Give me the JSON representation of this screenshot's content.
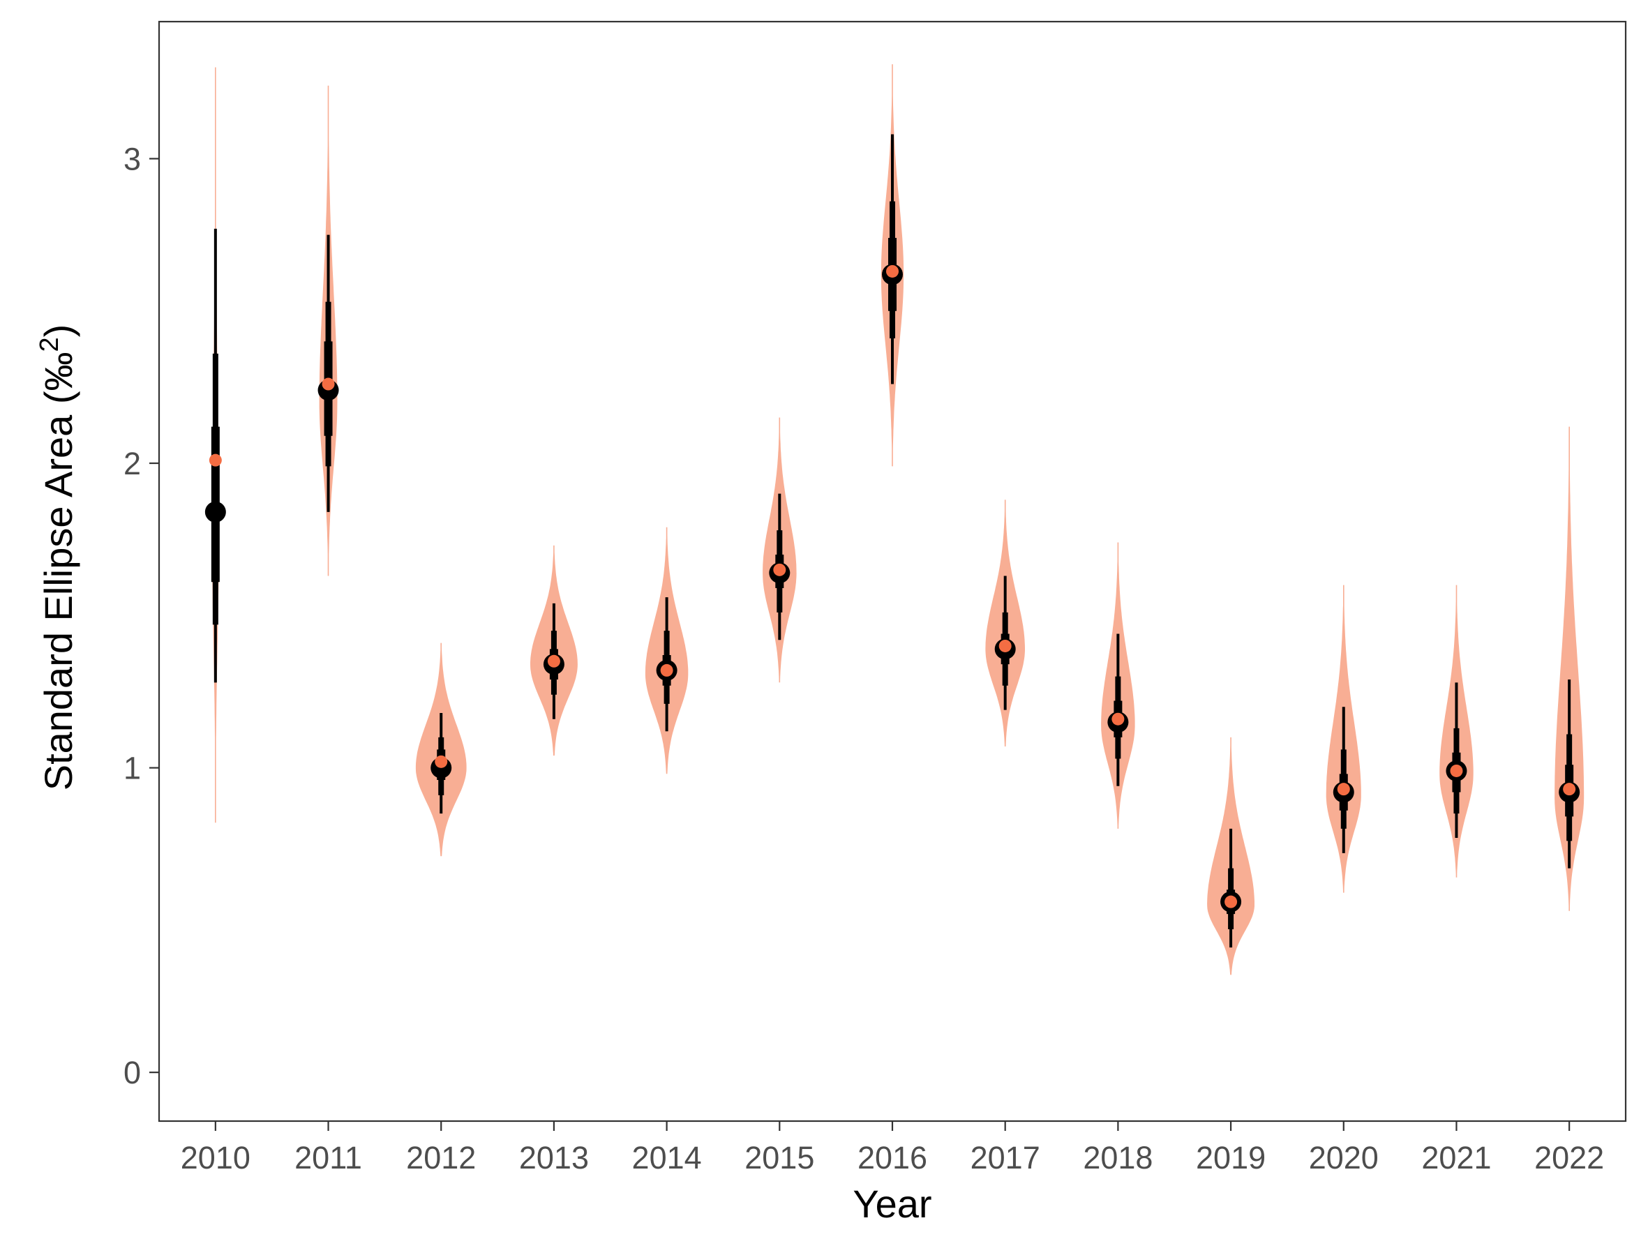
{
  "chart_data": {
    "type": "violin",
    "xlabel": "Year",
    "ylabel_main": "Standard Ellipse Area (",
    "ylabel_unit": "‰",
    "ylabel_sup": "2",
    "ylabel_close": ")",
    "ylim": [
      -0.16,
      3.45
    ],
    "y_ticks": [
      0,
      1,
      2,
      3
    ],
    "y_tick_labels": [
      "0",
      "1",
      "2",
      "3"
    ],
    "categories": [
      "2010",
      "2011",
      "2012",
      "2013",
      "2014",
      "2015",
      "2016",
      "2017",
      "2018",
      "2019",
      "2020",
      "2021",
      "2022"
    ],
    "grid": false,
    "legend": "none",
    "colors": {
      "violin_fill": "#f8ae94",
      "interval": "#000000",
      "mode_point": "#000000",
      "ml_point": "#f46d43"
    },
    "series": [
      {
        "year": "2010",
        "mode": 1.84,
        "ml_estimate": 2.01,
        "ci_50": [
          1.61,
          2.12
        ],
        "ci_75": [
          1.47,
          2.36
        ],
        "ci_95": [
          1.28,
          2.77
        ],
        "min": 0.82,
        "max": 3.3,
        "peak": 1.75,
        "half_width": 0.06
      },
      {
        "year": "2011",
        "mode": 2.24,
        "ml_estimate": 2.26,
        "ci_50": [
          2.09,
          2.4
        ],
        "ci_75": [
          1.99,
          2.53
        ],
        "ci_95": [
          1.84,
          2.75
        ],
        "min": 1.63,
        "max": 3.24,
        "peak": 2.2,
        "half_width": 0.16
      },
      {
        "year": "2012",
        "mode": 1.0,
        "ml_estimate": 1.02,
        "ci_50": [
          0.96,
          1.06
        ],
        "ci_75": [
          0.91,
          1.1
        ],
        "ci_95": [
          0.85,
          1.18
        ],
        "min": 0.71,
        "max": 1.41,
        "peak": 1.0,
        "half_width": 0.45
      },
      {
        "year": "2013",
        "mode": 1.34,
        "ml_estimate": 1.35,
        "ci_50": [
          1.29,
          1.39
        ],
        "ci_75": [
          1.24,
          1.45
        ],
        "ci_95": [
          1.16,
          1.54
        ],
        "min": 1.04,
        "max": 1.73,
        "peak": 1.34,
        "half_width": 0.42
      },
      {
        "year": "2014",
        "mode": 1.32,
        "ml_estimate": 1.32,
        "ci_50": [
          1.27,
          1.37
        ],
        "ci_75": [
          1.21,
          1.45
        ],
        "ci_95": [
          1.12,
          1.56
        ],
        "min": 0.98,
        "max": 1.79,
        "peak": 1.31,
        "half_width": 0.38
      },
      {
        "year": "2015",
        "mode": 1.64,
        "ml_estimate": 1.65,
        "ci_50": [
          1.59,
          1.7
        ],
        "ci_75": [
          1.51,
          1.78
        ],
        "ci_95": [
          1.42,
          1.9
        ],
        "min": 1.28,
        "max": 2.15,
        "peak": 1.64,
        "half_width": 0.3
      },
      {
        "year": "2016",
        "mode": 2.62,
        "ml_estimate": 2.63,
        "ci_50": [
          2.5,
          2.74
        ],
        "ci_75": [
          2.41,
          2.86
        ],
        "ci_95": [
          2.26,
          3.08
        ],
        "min": 1.99,
        "max": 3.31,
        "peak": 2.62,
        "half_width": 0.2
      },
      {
        "year": "2017",
        "mode": 1.39,
        "ml_estimate": 1.4,
        "ci_50": [
          1.34,
          1.44
        ],
        "ci_75": [
          1.27,
          1.51
        ],
        "ci_95": [
          1.19,
          1.63
        ],
        "min": 1.07,
        "max": 1.88,
        "peak": 1.39,
        "half_width": 0.35
      },
      {
        "year": "2018",
        "mode": 1.15,
        "ml_estimate": 1.16,
        "ci_50": [
          1.1,
          1.22
        ],
        "ci_75": [
          1.03,
          1.3
        ],
        "ci_95": [
          0.94,
          1.44
        ],
        "min": 0.8,
        "max": 1.74,
        "peak": 1.14,
        "half_width": 0.3
      },
      {
        "year": "2019",
        "mode": 0.56,
        "ml_estimate": 0.56,
        "ci_50": [
          0.52,
          0.6
        ],
        "ci_75": [
          0.47,
          0.67
        ],
        "ci_95": [
          0.41,
          0.8
        ],
        "min": 0.32,
        "max": 1.1,
        "peak": 0.55,
        "half_width": 0.42
      },
      {
        "year": "2020",
        "mode": 0.92,
        "ml_estimate": 0.93,
        "ci_50": [
          0.86,
          0.98
        ],
        "ci_75": [
          0.8,
          1.06
        ],
        "ci_95": [
          0.72,
          1.2
        ],
        "min": 0.59,
        "max": 1.6,
        "peak": 0.91,
        "half_width": 0.31
      },
      {
        "year": "2021",
        "mode": 0.99,
        "ml_estimate": 0.99,
        "ci_50": [
          0.92,
          1.05
        ],
        "ci_75": [
          0.85,
          1.13
        ],
        "ci_95": [
          0.77,
          1.28
        ],
        "min": 0.64,
        "max": 1.6,
        "peak": 0.98,
        "half_width": 0.3
      },
      {
        "year": "2022",
        "mode": 0.92,
        "ml_estimate": 0.93,
        "ci_50": [
          0.84,
          1.01
        ],
        "ci_75": [
          0.76,
          1.11
        ],
        "ci_95": [
          0.67,
          1.29
        ],
        "min": 0.53,
        "max": 2.12,
        "peak": 0.9,
        "half_width": 0.26
      }
    ]
  }
}
